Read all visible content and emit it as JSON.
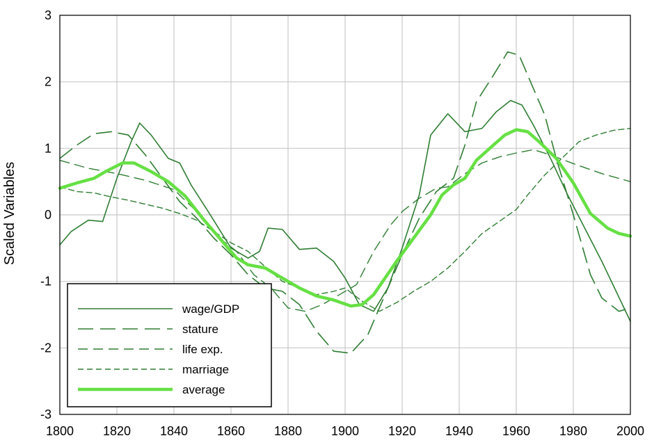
{
  "chart_data": {
    "type": "line",
    "title": "",
    "xlabel": "",
    "ylabel": "Scaled Variables",
    "xlim": [
      1800,
      2000
    ],
    "ylim": [
      -3,
      3
    ],
    "x_ticks": [
      "1800",
      "1820",
      "1840",
      "1860",
      "1880",
      "1900",
      "1920",
      "1940",
      "1960",
      "1980",
      "2000"
    ],
    "y_ticks": [
      "3",
      "2",
      "1",
      "0",
      "-1",
      "-2",
      "-3"
    ],
    "grid": true,
    "legend_position": "bottom-left",
    "series": [
      {
        "name": "wage/GDP",
        "style": "solid",
        "color": "#2e7d32",
        "points": [
          [
            1800,
            -0.45
          ],
          [
            1804,
            -0.25
          ],
          [
            1810,
            -0.08
          ],
          [
            1815,
            -0.1
          ],
          [
            1820,
            0.55
          ],
          [
            1825,
            1.1
          ],
          [
            1828,
            1.38
          ],
          [
            1832,
            1.2
          ],
          [
            1838,
            0.85
          ],
          [
            1842,
            0.78
          ],
          [
            1846,
            0.45
          ],
          [
            1852,
            0.05
          ],
          [
            1860,
            -0.5
          ],
          [
            1866,
            -0.65
          ],
          [
            1870,
            -0.55
          ],
          [
            1873,
            -0.2
          ],
          [
            1878,
            -0.22
          ],
          [
            1884,
            -0.52
          ],
          [
            1890,
            -0.5
          ],
          [
            1896,
            -0.7
          ],
          [
            1900,
            -0.95
          ],
          [
            1905,
            -1.35
          ],
          [
            1910,
            -1.45
          ],
          [
            1915,
            -1.1
          ],
          [
            1920,
            -0.5
          ],
          [
            1926,
            0.3
          ],
          [
            1930,
            1.2
          ],
          [
            1936,
            1.52
          ],
          [
            1942,
            1.25
          ],
          [
            1948,
            1.3
          ],
          [
            1953,
            1.55
          ],
          [
            1958,
            1.72
          ],
          [
            1962,
            1.65
          ],
          [
            1966,
            1.35
          ],
          [
            1972,
            0.85
          ],
          [
            1978,
            0.3
          ],
          [
            1984,
            -0.2
          ],
          [
            1990,
            -0.7
          ],
          [
            1995,
            -1.15
          ],
          [
            2000,
            -1.6
          ]
        ]
      },
      {
        "name": "stature",
        "style": "long-dash",
        "color": "#2e7d32",
        "points": [
          [
            1800,
            0.85
          ],
          [
            1806,
            1.05
          ],
          [
            1812,
            1.22
          ],
          [
            1818,
            1.25
          ],
          [
            1824,
            1.2
          ],
          [
            1830,
            0.9
          ],
          [
            1836,
            0.55
          ],
          [
            1842,
            0.2
          ],
          [
            1848,
            -0.05
          ],
          [
            1854,
            -0.35
          ],
          [
            1860,
            -0.6
          ],
          [
            1866,
            -0.9
          ],
          [
            1872,
            -1.1
          ],
          [
            1878,
            -1.15
          ],
          [
            1884,
            -1.35
          ],
          [
            1890,
            -1.75
          ],
          [
            1896,
            -2.05
          ],
          [
            1902,
            -2.08
          ],
          [
            1908,
            -1.8
          ],
          [
            1914,
            -1.2
          ],
          [
            1920,
            -0.6
          ],
          [
            1926,
            -0.05
          ],
          [
            1932,
            0.35
          ],
          [
            1938,
            0.55
          ],
          [
            1942,
            1.05
          ],
          [
            1946,
            1.7
          ],
          [
            1952,
            2.1
          ],
          [
            1957,
            2.45
          ],
          [
            1961,
            2.4
          ],
          [
            1966,
            1.9
          ],
          [
            1970,
            1.5
          ],
          [
            1974,
            0.85
          ],
          [
            1980,
            0.0
          ],
          [
            1986,
            -0.9
          ],
          [
            1990,
            -1.25
          ],
          [
            1996,
            -1.45
          ],
          [
            2000,
            -1.4
          ]
        ]
      },
      {
        "name": "life exp.",
        "style": "dash",
        "color": "#2e7d32",
        "points": [
          [
            1800,
            0.82
          ],
          [
            1810,
            0.7
          ],
          [
            1820,
            0.62
          ],
          [
            1830,
            0.52
          ],
          [
            1840,
            0.38
          ],
          [
            1848,
            0.05
          ],
          [
            1856,
            -0.35
          ],
          [
            1862,
            -0.55
          ],
          [
            1868,
            -0.9
          ],
          [
            1874,
            -1.1
          ],
          [
            1880,
            -1.4
          ],
          [
            1886,
            -1.45
          ],
          [
            1892,
            -1.35
          ],
          [
            1898,
            -1.2
          ],
          [
            1904,
            -1.05
          ],
          [
            1910,
            -0.55
          ],
          [
            1916,
            -0.15
          ],
          [
            1920,
            0.05
          ],
          [
            1926,
            0.25
          ],
          [
            1932,
            0.4
          ],
          [
            1936,
            0.42
          ],
          [
            1942,
            0.62
          ],
          [
            1948,
            0.78
          ],
          [
            1954,
            0.87
          ],
          [
            1960,
            0.93
          ],
          [
            1966,
            0.98
          ],
          [
            1972,
            0.9
          ],
          [
            1980,
            0.77
          ],
          [
            1990,
            0.62
          ],
          [
            2000,
            0.5
          ]
        ]
      },
      {
        "name": "marriage",
        "style": "short-dash",
        "color": "#2e7d32",
        "points": [
          [
            1800,
            0.42
          ],
          [
            1806,
            0.35
          ],
          [
            1812,
            0.33
          ],
          [
            1818,
            0.27
          ],
          [
            1824,
            0.22
          ],
          [
            1830,
            0.16
          ],
          [
            1836,
            0.1
          ],
          [
            1842,
            0.02
          ],
          [
            1848,
            -0.08
          ],
          [
            1854,
            -0.25
          ],
          [
            1860,
            -0.42
          ],
          [
            1866,
            -0.55
          ],
          [
            1872,
            -0.78
          ],
          [
            1878,
            -1.0
          ],
          [
            1884,
            -1.1
          ],
          [
            1890,
            -1.2
          ],
          [
            1896,
            -1.15
          ],
          [
            1900,
            -1.1
          ],
          [
            1906,
            -1.3
          ],
          [
            1912,
            -1.45
          ],
          [
            1918,
            -1.32
          ],
          [
            1924,
            -1.15
          ],
          [
            1930,
            -1.0
          ],
          [
            1936,
            -0.8
          ],
          [
            1942,
            -0.55
          ],
          [
            1948,
            -0.28
          ],
          [
            1954,
            -0.1
          ],
          [
            1960,
            0.08
          ],
          [
            1964,
            0.3
          ],
          [
            1970,
            0.6
          ],
          [
            1976,
            0.85
          ],
          [
            1982,
            1.1
          ],
          [
            1988,
            1.2
          ],
          [
            1994,
            1.27
          ],
          [
            2000,
            1.3
          ]
        ]
      },
      {
        "name": "average",
        "style": "thick",
        "color": "#66e044",
        "points": [
          [
            1800,
            0.4
          ],
          [
            1806,
            0.48
          ],
          [
            1812,
            0.55
          ],
          [
            1816,
            0.65
          ],
          [
            1822,
            0.78
          ],
          [
            1826,
            0.78
          ],
          [
            1832,
            0.65
          ],
          [
            1838,
            0.5
          ],
          [
            1844,
            0.28
          ],
          [
            1850,
            -0.05
          ],
          [
            1856,
            -0.35
          ],
          [
            1862,
            -0.65
          ],
          [
            1866,
            -0.75
          ],
          [
            1872,
            -0.8
          ],
          [
            1878,
            -0.95
          ],
          [
            1884,
            -1.1
          ],
          [
            1890,
            -1.22
          ],
          [
            1896,
            -1.28
          ],
          [
            1902,
            -1.37
          ],
          [
            1906,
            -1.35
          ],
          [
            1910,
            -1.2
          ],
          [
            1914,
            -0.95
          ],
          [
            1918,
            -0.7
          ],
          [
            1924,
            -0.35
          ],
          [
            1930,
            0.0
          ],
          [
            1934,
            0.3
          ],
          [
            1938,
            0.45
          ],
          [
            1942,
            0.55
          ],
          [
            1946,
            0.82
          ],
          [
            1952,
            1.05
          ],
          [
            1956,
            1.2
          ],
          [
            1960,
            1.28
          ],
          [
            1964,
            1.25
          ],
          [
            1968,
            1.1
          ],
          [
            1974,
            0.85
          ],
          [
            1980,
            0.48
          ],
          [
            1986,
            0.02
          ],
          [
            1992,
            -0.2
          ],
          [
            1996,
            -0.28
          ],
          [
            2000,
            -0.32
          ]
        ]
      }
    ]
  }
}
